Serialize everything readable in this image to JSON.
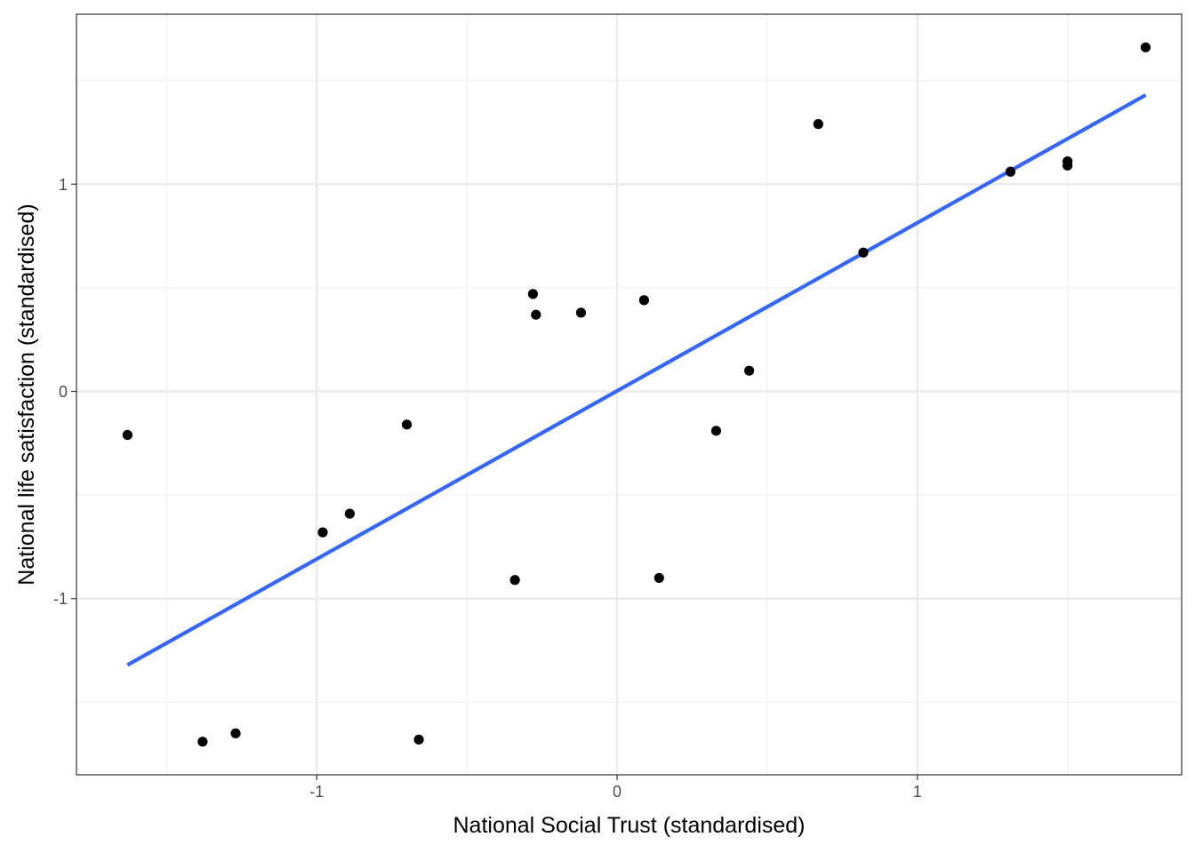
{
  "chart_data": {
    "type": "scatter",
    "title": "",
    "xlabel": "National Social Trust (standardised)",
    "ylabel": "National life satisfaction (standardised)",
    "xlim": [
      -1.8,
      1.88
    ],
    "ylim": [
      -1.85,
      1.82
    ],
    "x_ticks": [
      {
        "value": -1,
        "label": "-1"
      },
      {
        "value": 0,
        "label": "0"
      },
      {
        "value": 1,
        "label": "1"
      }
    ],
    "y_ticks": [
      {
        "value": -1,
        "label": "-1"
      },
      {
        "value": 0,
        "label": "0"
      },
      {
        "value": 1,
        "label": "1"
      }
    ],
    "x_minor": [
      -1.5,
      -0.5,
      0.5,
      1.5
    ],
    "y_minor": [
      -1.5,
      -0.5,
      0.5,
      1.5
    ],
    "grid": true,
    "legend": "none",
    "colors": {
      "points": "#000000",
      "fit_line": "#3366ff",
      "grid_major": "#ebebeb",
      "grid_minor": "#f2f2f2",
      "panel_border": "#333333"
    },
    "series": [
      {
        "type": "scatter",
        "points": [
          {
            "x": -1.63,
            "y": -0.21
          },
          {
            "x": -1.38,
            "y": -1.69
          },
          {
            "x": -1.27,
            "y": -1.65
          },
          {
            "x": -0.98,
            "y": -0.68
          },
          {
            "x": -0.89,
            "y": -0.59
          },
          {
            "x": -0.7,
            "y": -0.16
          },
          {
            "x": -0.66,
            "y": -1.68
          },
          {
            "x": -0.34,
            "y": -0.91
          },
          {
            "x": -0.28,
            "y": 0.47
          },
          {
            "x": -0.27,
            "y": 0.37
          },
          {
            "x": -0.12,
            "y": 0.38
          },
          {
            "x": 0.09,
            "y": 0.44
          },
          {
            "x": 0.14,
            "y": -0.9
          },
          {
            "x": 0.33,
            "y": -0.19
          },
          {
            "x": 0.44,
            "y": 0.1
          },
          {
            "x": 0.67,
            "y": 1.29
          },
          {
            "x": 0.82,
            "y": 0.67
          },
          {
            "x": 1.31,
            "y": 1.06
          },
          {
            "x": 1.5,
            "y": 1.11
          },
          {
            "x": 1.5,
            "y": 1.09
          },
          {
            "x": 1.76,
            "y": 1.66
          }
        ]
      },
      {
        "type": "line",
        "points": [
          {
            "x": -1.63,
            "y": -1.32
          },
          {
            "x": 1.76,
            "y": 1.43
          }
        ]
      }
    ]
  }
}
